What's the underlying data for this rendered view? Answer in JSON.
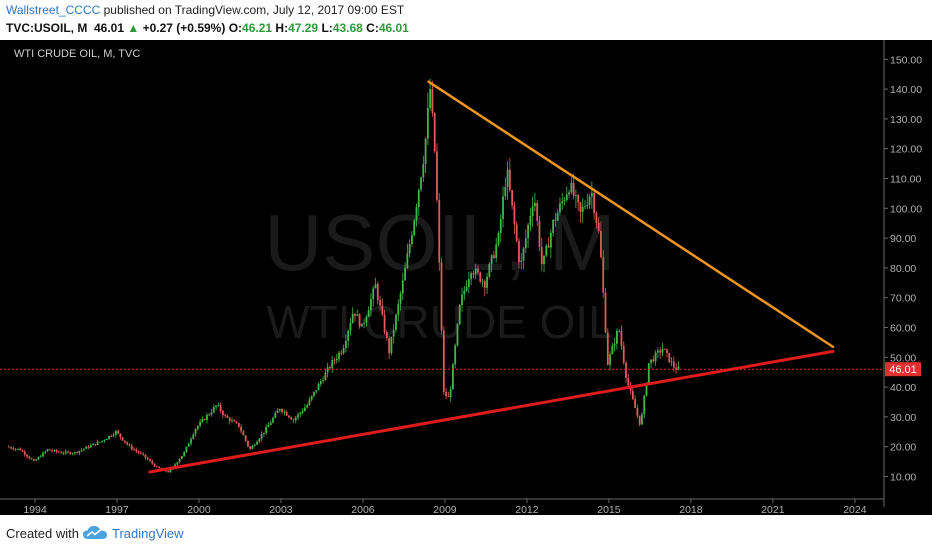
{
  "header": {
    "author": "Wallstreet_CCCC",
    "published_text": "published on TradingView.com, July 12, 2017 09:00 EST",
    "symbol": "TVC:USOIL, M",
    "last": "46.01",
    "change_arrow": "▲",
    "change": "+0.27 (+0.59%)",
    "o_label": "O:",
    "o_value": "46.21",
    "h_label": "H:",
    "h_value": "47.29",
    "l_label": "L:",
    "l_value": "43.68",
    "c_label": "C:",
    "c_value": "46.01"
  },
  "chart_data": {
    "type": "candlestick",
    "title": "WTI CRUDE OIL, M, TVC",
    "watermark_symbol": "USOIL, M",
    "watermark_name": "WTI CRUDE OIL",
    "x_ticks": [
      "1994",
      "1997",
      "2000",
      "2003",
      "2006",
      "2009",
      "2012",
      "2015",
      "2018",
      "2021",
      "2024"
    ],
    "y_ticks": [
      "10.00",
      "20.00",
      "30.00",
      "40.00",
      "50.00",
      "60.00",
      "70.00",
      "80.00",
      "90.00",
      "100.00",
      "110.00",
      "120.00",
      "130.00",
      "140.00",
      "150.00"
    ],
    "ylim": [
      0,
      155
    ],
    "xlim": [
      1993.0,
      2025.5
    ],
    "last_price_label": "46.01",
    "last_price": 46.01,
    "price_path": [
      [
        1993.0,
        20
      ],
      [
        1993.5,
        19
      ],
      [
        1994.0,
        15
      ],
      [
        1994.5,
        19
      ],
      [
        1995.0,
        18
      ],
      [
        1995.5,
        18
      ],
      [
        1996.0,
        20
      ],
      [
        1996.5,
        22
      ],
      [
        1997.0,
        25
      ],
      [
        1997.5,
        20
      ],
      [
        1998.0,
        17
      ],
      [
        1998.5,
        13
      ],
      [
        1998.95,
        11.5
      ],
      [
        1999.5,
        18
      ],
      [
        1999.9,
        26
      ],
      [
        2000.3,
        30
      ],
      [
        2000.7,
        34
      ],
      [
        2001.0,
        30
      ],
      [
        2001.5,
        27
      ],
      [
        2001.9,
        19
      ],
      [
        2002.5,
        26
      ],
      [
        2003.0,
        33
      ],
      [
        2003.5,
        29
      ],
      [
        2004.0,
        34
      ],
      [
        2004.5,
        42
      ],
      [
        2004.9,
        48
      ],
      [
        2005.3,
        53
      ],
      [
        2005.7,
        66
      ],
      [
        2006.0,
        60
      ],
      [
        2006.5,
        74
      ],
      [
        2007.0,
        52
      ],
      [
        2007.5,
        75
      ],
      [
        2007.9,
        96
      ],
      [
        2008.3,
        120
      ],
      [
        2008.5,
        140
      ],
      [
        2008.7,
        115
      ],
      [
        2009.0,
        38
      ],
      [
        2009.2,
        36
      ],
      [
        2009.6,
        68
      ],
      [
        2010.0,
        80
      ],
      [
        2010.5,
        75
      ],
      [
        2011.0,
        90
      ],
      [
        2011.3,
        113
      ],
      [
        2011.8,
        80
      ],
      [
        2012.3,
        105
      ],
      [
        2012.6,
        80
      ],
      [
        2013.0,
        95
      ],
      [
        2013.6,
        108
      ],
      [
        2014.0,
        98
      ],
      [
        2014.4,
        106
      ],
      [
        2014.7,
        90
      ],
      [
        2015.0,
        48
      ],
      [
        2015.4,
        60
      ],
      [
        2015.7,
        42
      ],
      [
        2016.0,
        33
      ],
      [
        2016.2,
        27
      ],
      [
        2016.5,
        48
      ],
      [
        2017.0,
        53
      ],
      [
        2017.4,
        47
      ],
      [
        2017.55,
        46
      ]
    ],
    "trendlines": [
      {
        "color": "#f0951f",
        "from": [
          2008.4,
          142.5
        ],
        "to": [
          2023.2,
          53.5
        ]
      },
      {
        "color": "#e01b1b",
        "from": [
          1998.2,
          11.5
        ],
        "to": [
          2023.2,
          52
        ]
      }
    ],
    "colors": {
      "background": "#000000",
      "up": "#41b84a",
      "down": "#e25a5a",
      "axis_text": "#b0b0b0",
      "axis_line": "#6a6a6a",
      "last_price": "#e22f2f",
      "watermark": "#1a1a1a"
    }
  },
  "footer": {
    "created_with": "Created with",
    "brand": "TradingView",
    "brand_icon": "tradingview-cloud-icon"
  }
}
